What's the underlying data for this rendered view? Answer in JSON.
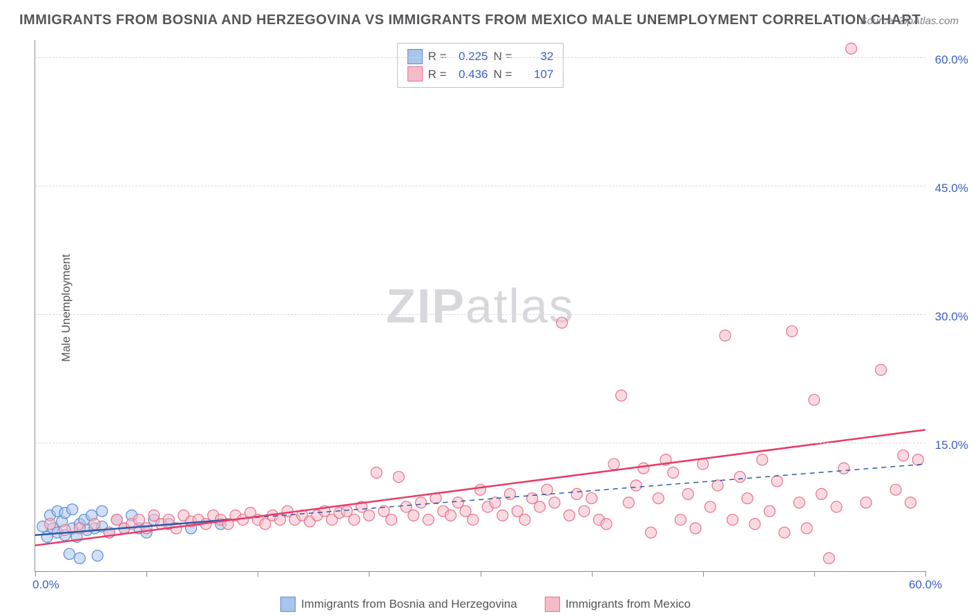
{
  "title": "IMMIGRANTS FROM BOSNIA AND HERZEGOVINA VS IMMIGRANTS FROM MEXICO MALE UNEMPLOYMENT CORRELATION CHART",
  "source": "Source: ZipAtlas.com",
  "ylabel": "Male Unemployment",
  "watermark_bold": "ZIP",
  "watermark_light": "atlas",
  "chart": {
    "type": "scatter",
    "background_color": "#ffffff",
    "grid_color": "#d8d8de",
    "axis_color": "#8a8a95",
    "tick_label_color": "#3b5fc0",
    "xlim": [
      0,
      60
    ],
    "ylim": [
      0,
      62
    ],
    "ytick_step": 15,
    "ytick_labels": [
      "15.0%",
      "30.0%",
      "45.0%",
      "60.0%"
    ],
    "xtick_positions": [
      0,
      7.5,
      15,
      22.5,
      30,
      37.5,
      45,
      52.5,
      60
    ],
    "xtick_labels_shown": {
      "0": "0.0%",
      "60": "60.0%"
    },
    "marker_radius": 8,
    "marker_stroke_width": 1.2,
    "trend_line_width": 2.5,
    "trend_dash_width": 1.5
  },
  "series": [
    {
      "name": "Immigrants from Bosnia and Herzegovina",
      "fill": "#a9c5ea",
      "stroke": "#5a8dd6",
      "fill_opacity": 0.55,
      "trend_color": "#2b5aa8",
      "trend_style": "solid_then_dashed",
      "trend_solid_until_x": 13,
      "trend": {
        "x1": 0,
        "y1": 4.2,
        "x2": 60,
        "y2": 12.5
      },
      "R": "0.225",
      "N": "32",
      "points": [
        [
          0.5,
          5.2
        ],
        [
          0.8,
          4.0
        ],
        [
          1.0,
          6.5
        ],
        [
          1.2,
          5.0
        ],
        [
          1.5,
          4.5
        ],
        [
          1.5,
          7.0
        ],
        [
          1.8,
          5.8
        ],
        [
          2.0,
          4.2
        ],
        [
          2.0,
          6.8
        ],
        [
          2.3,
          2.0
        ],
        [
          2.5,
          5.0
        ],
        [
          2.5,
          7.2
        ],
        [
          2.8,
          4.0
        ],
        [
          3.0,
          5.5
        ],
        [
          3.0,
          1.5
        ],
        [
          3.3,
          6.0
        ],
        [
          3.5,
          4.8
        ],
        [
          3.8,
          6.5
        ],
        [
          4.0,
          5.0
        ],
        [
          4.2,
          1.8
        ],
        [
          4.5,
          5.2
        ],
        [
          4.5,
          7.0
        ],
        [
          5.0,
          4.5
        ],
        [
          5.5,
          6.0
        ],
        [
          6.0,
          5.0
        ],
        [
          6.5,
          6.5
        ],
        [
          7.0,
          5.0
        ],
        [
          7.5,
          4.5
        ],
        [
          8.0,
          6.0
        ],
        [
          9.0,
          5.5
        ],
        [
          10.5,
          5.0
        ],
        [
          12.5,
          5.5
        ]
      ]
    },
    {
      "name": "Immigrants from Mexico",
      "fill": "#f5bcc8",
      "stroke": "#e6718c",
      "fill_opacity": 0.55,
      "trend_color": "#e93a68",
      "trend_style": "solid",
      "trend": {
        "x1": 0,
        "y1": 3.0,
        "x2": 60,
        "y2": 16.5
      },
      "R": "0.436",
      "N": "107",
      "points": [
        [
          1.0,
          5.5
        ],
        [
          2.0,
          4.8
        ],
        [
          3.0,
          5.0
        ],
        [
          4.0,
          5.5
        ],
        [
          5.0,
          4.5
        ],
        [
          5.5,
          6.0
        ],
        [
          6.0,
          5.0
        ],
        [
          6.5,
          5.5
        ],
        [
          7.0,
          6.0
        ],
        [
          7.5,
          5.0
        ],
        [
          8.0,
          6.5
        ],
        [
          8.5,
          5.5
        ],
        [
          9.0,
          6.0
        ],
        [
          9.5,
          5.0
        ],
        [
          10.0,
          6.5
        ],
        [
          10.5,
          5.8
        ],
        [
          11.0,
          6.0
        ],
        [
          11.5,
          5.5
        ],
        [
          12.0,
          6.5
        ],
        [
          12.5,
          6.0
        ],
        [
          13.0,
          5.5
        ],
        [
          13.5,
          6.5
        ],
        [
          14.0,
          6.0
        ],
        [
          14.5,
          6.8
        ],
        [
          15.0,
          6.0
        ],
        [
          15.5,
          5.5
        ],
        [
          16.0,
          6.5
        ],
        [
          16.5,
          6.0
        ],
        [
          17.0,
          7.0
        ],
        [
          17.5,
          6.0
        ],
        [
          18.0,
          6.5
        ],
        [
          18.5,
          5.8
        ],
        [
          19.0,
          6.5
        ],
        [
          19.5,
          7.0
        ],
        [
          20.0,
          6.0
        ],
        [
          20.5,
          6.8
        ],
        [
          21.0,
          7.0
        ],
        [
          21.5,
          6.0
        ],
        [
          22.0,
          7.5
        ],
        [
          22.5,
          6.5
        ],
        [
          23.0,
          11.5
        ],
        [
          23.5,
          7.0
        ],
        [
          24.0,
          6.0
        ],
        [
          24.5,
          11.0
        ],
        [
          25.0,
          7.5
        ],
        [
          25.5,
          6.5
        ],
        [
          26.0,
          8.0
        ],
        [
          26.5,
          6.0
        ],
        [
          27.0,
          8.5
        ],
        [
          27.5,
          7.0
        ],
        [
          28.0,
          6.5
        ],
        [
          28.5,
          8.0
        ],
        [
          29.0,
          7.0
        ],
        [
          29.5,
          6.0
        ],
        [
          30.0,
          9.5
        ],
        [
          30.5,
          7.5
        ],
        [
          31.0,
          8.0
        ],
        [
          31.5,
          6.5
        ],
        [
          32.0,
          9.0
        ],
        [
          32.5,
          7.0
        ],
        [
          33.0,
          6.0
        ],
        [
          33.5,
          8.5
        ],
        [
          34.0,
          7.5
        ],
        [
          34.5,
          9.5
        ],
        [
          35.0,
          8.0
        ],
        [
          35.5,
          29.0
        ],
        [
          36.0,
          6.5
        ],
        [
          36.5,
          9.0
        ],
        [
          37.0,
          7.0
        ],
        [
          37.5,
          8.5
        ],
        [
          38.0,
          6.0
        ],
        [
          38.5,
          5.5
        ],
        [
          39.0,
          12.5
        ],
        [
          39.5,
          20.5
        ],
        [
          40.0,
          8.0
        ],
        [
          40.5,
          10.0
        ],
        [
          41.0,
          12.0
        ],
        [
          41.5,
          4.5
        ],
        [
          42.0,
          8.5
        ],
        [
          42.5,
          13.0
        ],
        [
          43.0,
          11.5
        ],
        [
          43.5,
          6.0
        ],
        [
          44.0,
          9.0
        ],
        [
          44.5,
          5.0
        ],
        [
          45.0,
          12.5
        ],
        [
          45.5,
          7.5
        ],
        [
          46.0,
          10.0
        ],
        [
          46.5,
          27.5
        ],
        [
          47.0,
          6.0
        ],
        [
          47.5,
          11.0
        ],
        [
          48.0,
          8.5
        ],
        [
          48.5,
          5.5
        ],
        [
          49.0,
          13.0
        ],
        [
          49.5,
          7.0
        ],
        [
          50.0,
          10.5
        ],
        [
          50.5,
          4.5
        ],
        [
          51.0,
          28.0
        ],
        [
          51.5,
          8.0
        ],
        [
          52.0,
          5.0
        ],
        [
          52.5,
          20.0
        ],
        [
          53.0,
          9.0
        ],
        [
          53.5,
          1.5
        ],
        [
          54.0,
          7.5
        ],
        [
          54.5,
          12.0
        ],
        [
          55.0,
          61.0
        ],
        [
          56.0,
          8.0
        ],
        [
          57.0,
          23.5
        ],
        [
          58.0,
          9.5
        ],
        [
          58.5,
          13.5
        ],
        [
          59.0,
          8.0
        ],
        [
          59.5,
          13.0
        ]
      ]
    }
  ],
  "legend_bottom": [
    {
      "label": "Immigrants from Bosnia and Herzegovina",
      "fill": "#a9c5ea",
      "stroke": "#5a8dd6"
    },
    {
      "label": "Immigrants from Mexico",
      "fill": "#f5bcc8",
      "stroke": "#e6718c"
    }
  ],
  "stats_labels": {
    "R": "R  =",
    "N": "N  ="
  }
}
